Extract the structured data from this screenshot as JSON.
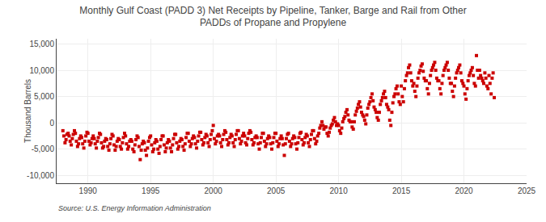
{
  "chart_data": {
    "type": "scatter",
    "title": "Monthly Gulf Coast (PADD 3) Net Receipts by Pipeline, Tanker, Barge and Rail from Other\nPADDs of Propane and Propylene",
    "ylabel": "Thousand Barrels",
    "annotations": [
      "Source: U.S. Energy Information Administration"
    ],
    "color": "#cc0000",
    "marker": "square",
    "grid": true,
    "xlim": [
      1987.5,
      2025
    ],
    "xticks": [
      1990,
      1995,
      2000,
      2005,
      2010,
      2015,
      2020,
      2025
    ],
    "ylim": [
      -11500,
      16000
    ],
    "yticks": [
      {
        "value": -10000,
        "label": "-10,000"
      },
      {
        "value": -5000,
        "label": "-5,000"
      },
      0,
      {
        "value": 5000,
        "label": "5,000"
      },
      {
        "value": 10000,
        "label": "10,000"
      },
      {
        "value": 15000,
        "label": "15,000"
      }
    ],
    "x": [
      1988.0,
      1988.08,
      1988.17,
      1988.25,
      1988.33,
      1988.42,
      1988.5,
      1988.58,
      1988.67,
      1988.75,
      1988.83,
      1988.92,
      1989.0,
      1989.08,
      1989.17,
      1989.25,
      1989.33,
      1989.42,
      1989.5,
      1989.58,
      1989.67,
      1989.75,
      1989.83,
      1989.92,
      1990.0,
      1990.08,
      1990.17,
      1990.25,
      1990.33,
      1990.42,
      1990.5,
      1990.58,
      1990.67,
      1990.75,
      1990.83,
      1990.92,
      1991.0,
      1991.08,
      1991.17,
      1991.25,
      1991.33,
      1991.42,
      1991.5,
      1991.58,
      1991.67,
      1991.75,
      1991.83,
      1991.92,
      1992.0,
      1992.08,
      1992.17,
      1992.25,
      1992.33,
      1992.42,
      1992.5,
      1992.58,
      1992.67,
      1992.75,
      1992.83,
      1992.92,
      1993.0,
      1993.08,
      1993.17,
      1993.25,
      1993.33,
      1993.42,
      1993.5,
      1993.58,
      1993.67,
      1993.75,
      1993.83,
      1993.92,
      1994.0,
      1994.08,
      1994.17,
      1994.25,
      1994.33,
      1994.42,
      1994.5,
      1994.58,
      1994.67,
      1994.75,
      1994.83,
      1994.92,
      1995.0,
      1995.08,
      1995.17,
      1995.25,
      1995.33,
      1995.42,
      1995.5,
      1995.58,
      1995.67,
      1995.75,
      1995.83,
      1995.92,
      1996.0,
      1996.08,
      1996.17,
      1996.25,
      1996.33,
      1996.42,
      1996.5,
      1996.58,
      1996.67,
      1996.75,
      1996.83,
      1996.92,
      1997.0,
      1997.08,
      1997.17,
      1997.25,
      1997.33,
      1997.42,
      1997.5,
      1997.58,
      1997.67,
      1997.75,
      1997.83,
      1997.92,
      1998.0,
      1998.08,
      1998.17,
      1998.25,
      1998.33,
      1998.42,
      1998.5,
      1998.58,
      1998.67,
      1998.75,
      1998.83,
      1998.92,
      1999.0,
      1999.08,
      1999.17,
      1999.25,
      1999.33,
      1999.42,
      1999.5,
      1999.58,
      1999.67,
      1999.75,
      1999.83,
      1999.92,
      2000.0,
      2000.08,
      2000.17,
      2000.25,
      2000.33,
      2000.42,
      2000.5,
      2000.58,
      2000.67,
      2000.75,
      2000.83,
      2000.92,
      2001.0,
      2001.08,
      2001.17,
      2001.25,
      2001.33,
      2001.42,
      2001.5,
      2001.58,
      2001.67,
      2001.75,
      2001.83,
      2001.92,
      2002.0,
      2002.08,
      2002.17,
      2002.25,
      2002.33,
      2002.42,
      2002.5,
      2002.58,
      2002.67,
      2002.75,
      2002.83,
      2002.92,
      2003.0,
      2003.08,
      2003.17,
      2003.25,
      2003.33,
      2003.42,
      2003.5,
      2003.58,
      2003.67,
      2003.75,
      2003.83,
      2003.92,
      2004.0,
      2004.08,
      2004.17,
      2004.25,
      2004.33,
      2004.42,
      2004.5,
      2004.58,
      2004.67,
      2004.75,
      2004.83,
      2004.92,
      2005.0,
      2005.08,
      2005.17,
      2005.25,
      2005.33,
      2005.42,
      2005.5,
      2005.58,
      2005.67,
      2005.75,
      2005.83,
      2005.92,
      2006.0,
      2006.08,
      2006.17,
      2006.25,
      2006.33,
      2006.42,
      2006.5,
      2006.58,
      2006.67,
      2006.75,
      2006.83,
      2006.92,
      2007.0,
      2007.08,
      2007.17,
      2007.25,
      2007.33,
      2007.42,
      2007.5,
      2007.58,
      2007.67,
      2007.75,
      2007.83,
      2007.92,
      2008.0,
      2008.08,
      2008.17,
      2008.25,
      2008.33,
      2008.42,
      2008.5,
      2008.58,
      2008.67,
      2008.75,
      2008.83,
      2008.92,
      2009.0,
      2009.08,
      2009.17,
      2009.25,
      2009.33,
      2009.42,
      2009.5,
      2009.58,
      2009.67,
      2009.75,
      2009.83,
      2009.92,
      2010.0,
      2010.08,
      2010.17,
      2010.25,
      2010.33,
      2010.42,
      2010.5,
      2010.58,
      2010.67,
      2010.75,
      2010.83,
      2010.92,
      2011.0,
      2011.08,
      2011.17,
      2011.25,
      2011.33,
      2011.42,
      2011.5,
      2011.58,
      2011.67,
      2011.75,
      2011.83,
      2011.92,
      2012.0,
      2012.08,
      2012.17,
      2012.25,
      2012.33,
      2012.42,
      2012.5,
      2012.58,
      2012.67,
      2012.75,
      2012.83,
      2012.92,
      2013.0,
      2013.08,
      2013.17,
      2013.25,
      2013.33,
      2013.42,
      2013.5,
      2013.58,
      2013.67,
      2013.75,
      2013.83,
      2013.92,
      2014.0,
      2014.08,
      2014.17,
      2014.25,
      2014.33,
      2014.42,
      2014.5,
      2014.58,
      2014.67,
      2014.75,
      2014.83,
      2014.92,
      2015.0,
      2015.08,
      2015.17,
      2015.25,
      2015.33,
      2015.42,
      2015.5,
      2015.58,
      2015.67,
      2015.75,
      2015.83,
      2015.92,
      2016.0,
      2016.08,
      2016.17,
      2016.25,
      2016.33,
      2016.42,
      2016.5,
      2016.58,
      2016.67,
      2016.75,
      2016.83,
      2016.92,
      2017.0,
      2017.08,
      2017.17,
      2017.25,
      2017.33,
      2017.42,
      2017.5,
      2017.58,
      2017.67,
      2017.75,
      2017.83,
      2017.92,
      2018.0,
      2018.08,
      2018.17,
      2018.25,
      2018.33,
      2018.42,
      2018.5,
      2018.58,
      2018.67,
      2018.75,
      2018.83,
      2018.92,
      2019.0,
      2019.08,
      2019.17,
      2019.25,
      2019.33,
      2019.42,
      2019.5,
      2019.58,
      2019.67,
      2019.75,
      2019.83,
      2019.92,
      2020.0,
      2020.08,
      2020.17,
      2020.25,
      2020.33,
      2020.42,
      2020.5,
      2020.58,
      2020.67,
      2020.75,
      2020.83,
      2020.92,
      2021.0,
      2021.08,
      2021.17,
      2021.25,
      2021.33,
      2021.42,
      2021.5,
      2021.58,
      2021.67,
      2021.75,
      2021.83,
      2021.92,
      2022.0,
      2022.08,
      2022.17,
      2022.25,
      2022.33,
      2022.42
    ],
    "values": [
      -1500,
      -2500,
      -3800,
      -3200,
      -2200,
      -2000,
      -2500,
      -3500,
      -4200,
      -3000,
      -2200,
      -1500,
      -2000,
      -3500,
      -4500,
      -4000,
      -3000,
      -2500,
      -2800,
      -4000,
      -4800,
      -3500,
      -2500,
      -1800,
      -2000,
      -3500,
      -4200,
      -3800,
      -3000,
      -2500,
      -3000,
      -4000,
      -4800,
      -3500,
      -2800,
      -2000,
      -2200,
      -3800,
      -4800,
      -4500,
      -3500,
      -3000,
      -3200,
      -4500,
      -5200,
      -4000,
      -3000,
      -2200,
      -2500,
      -4200,
      -5200,
      -4500,
      -3500,
      -3000,
      -3200,
      -4500,
      -5000,
      -3800,
      -2800,
      -2000,
      -2500,
      -4000,
      -5000,
      -4500,
      -3500,
      -3200,
      -3500,
      -5000,
      -5500,
      -4200,
      -3200,
      -2500,
      -2800,
      -4500,
      -7000,
      -5200,
      -4000,
      -3500,
      -3800,
      -5200,
      -6200,
      -4800,
      -3500,
      -2800,
      -2500,
      -4200,
      -5500,
      -5000,
      -3800,
      -3200,
      -3500,
      -5000,
      -5800,
      -4500,
      -3200,
      -2500,
      -2500,
      -4200,
      -5500,
      -4800,
      -3800,
      -3200,
      -3500,
      -4800,
      -5500,
      -4200,
      -3000,
      -2200,
      -2200,
      -3800,
      -5000,
      -4500,
      -3500,
      -3000,
      -3200,
      -4500,
      -5200,
      -4000,
      -2800,
      -2000,
      -2000,
      -3500,
      -4500,
      -4000,
      -3000,
      -2500,
      -2800,
      -4000,
      -4800,
      -3500,
      -2500,
      -1800,
      -1800,
      -3200,
      -4200,
      -3800,
      -2800,
      -2200,
      -2500,
      -3800,
      -4500,
      -3200,
      -2200,
      -1500,
      -500,
      -3000,
      -4000,
      -3500,
      -2500,
      -2200,
      -2500,
      -3800,
      -4500,
      -3200,
      -2200,
      -1500,
      -1800,
      -3200,
      -4200,
      -3800,
      -2800,
      -2200,
      -2500,
      -3800,
      -4500,
      -3200,
      -2200,
      -1500,
      -1500,
      -3000,
      -4000,
      -3500,
      -2500,
      -2000,
      -2500,
      -3800,
      -4200,
      -3000,
      -2000,
      -1500,
      -1800,
      -3200,
      -4200,
      -3800,
      -2800,
      -2500,
      -2800,
      -4000,
      -5000,
      -3800,
      -2800,
      -2000,
      -2000,
      -3500,
      -4500,
      -4000,
      -3000,
      -2500,
      -2800,
      -4000,
      -5000,
      -3800,
      -2800,
      -2000,
      -2000,
      -3500,
      -4500,
      -4000,
      -3000,
      -2500,
      -3000,
      -4200,
      -6200,
      -4000,
      -3000,
      -2200,
      -2000,
      -3500,
      -4500,
      -4000,
      -3000,
      -2500,
      -2800,
      -4000,
      -5000,
      -3800,
      -2800,
      -2000,
      -1800,
      -3200,
      -4200,
      -3800,
      -2800,
      -2200,
      -2500,
      -3800,
      -4500,
      -3200,
      -2200,
      -1500,
      -1500,
      -3000,
      -4000,
      -3500,
      -2500,
      -2000,
      -1000,
      -500,
      200,
      -500,
      -1200,
      -800,
      -800,
      -2000,
      -2500,
      -1800,
      -1000,
      -500,
      -200,
      500,
      1000,
      200,
      -500,
      -200,
      -500,
      -1500,
      -2000,
      -1000,
      200,
      800,
      1200,
      2000,
      2500,
      1500,
      500,
      200,
      200,
      -800,
      -1200,
      200,
      1500,
      2200,
      2800,
      3500,
      4000,
      3000,
      2000,
      1500,
      1200,
      500,
      -200,
      1500,
      2800,
      3500,
      4000,
      4800,
      5500,
      4200,
      3000,
      2500,
      2000,
      1000,
      500,
      2000,
      3500,
      4200,
      4800,
      5500,
      6000,
      4800,
      3500,
      3000,
      2500,
      500,
      -500,
      2000,
      3800,
      5000,
      5500,
      6500,
      7000,
      5500,
      4000,
      3500,
      7000,
      5000,
      4000,
      6500,
      8000,
      9000,
      9500,
      10500,
      11000,
      9500,
      8000,
      7000,
      7500,
      6000,
      5000,
      7000,
      8500,
      9500,
      10000,
      10800,
      11200,
      9800,
      8500,
      8000,
      8000,
      6500,
      5500,
      7500,
      9000,
      10000,
      10500,
      11000,
      11500,
      10000,
      8500,
      8000,
      8000,
      6500,
      5500,
      7500,
      9000,
      10000,
      10500,
      11000,
      11500,
      10000,
      8500,
      7500,
      7500,
      6000,
      5000,
      7000,
      8500,
      9500,
      10000,
      10500,
      11000,
      9500,
      8000,
      7500,
      7000,
      5500,
      4500,
      6500,
      8000,
      9000,
      9500,
      10000,
      10500,
      9000,
      7500,
      7000,
      12800,
      10000,
      8500,
      10000,
      9000,
      8500,
      8000,
      7500,
      9500,
      8500,
      7000,
      6500,
      9000,
      7500,
      5500,
      8500,
      9500,
      4800
    ]
  }
}
